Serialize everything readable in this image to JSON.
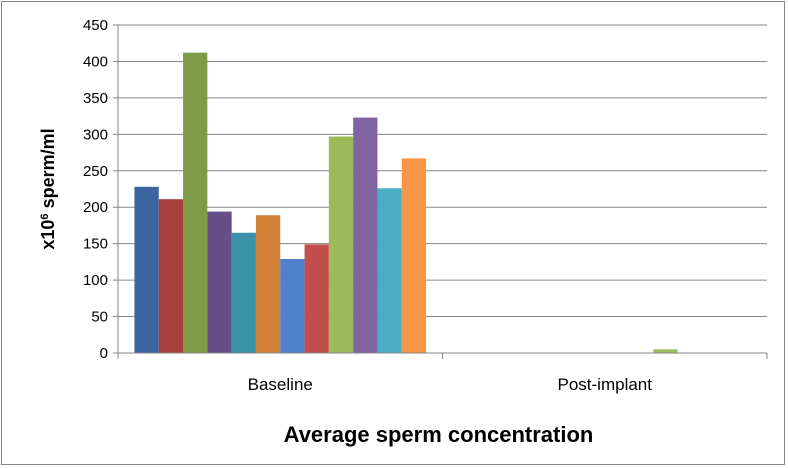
{
  "chart_data": {
    "type": "bar",
    "categories": [
      "Baseline",
      "Post-implant"
    ],
    "series": [
      {
        "values": [
          228,
          0
        ],
        "color": "#3B64A0"
      },
      {
        "values": [
          211,
          0
        ],
        "color": "#A83F3C"
      },
      {
        "values": [
          412,
          0
        ],
        "color": "#7E9B48"
      },
      {
        "values": [
          194,
          0
        ],
        "color": "#674E87"
      },
      {
        "values": [
          165,
          0
        ],
        "color": "#3A92A8"
      },
      {
        "values": [
          189,
          0
        ],
        "color": "#D07F36"
      },
      {
        "values": [
          129,
          0
        ],
        "color": "#4F82CA"
      },
      {
        "values": [
          149,
          0
        ],
        "color": "#C24F4D"
      },
      {
        "values": [
          297,
          5
        ],
        "color": "#9BBB59"
      },
      {
        "values": [
          323,
          0
        ],
        "color": "#8064A2"
      },
      {
        "values": [
          226,
          0
        ],
        "color": "#4BACC6"
      },
      {
        "values": [
          267,
          0
        ],
        "color": "#F79646"
      }
    ],
    "xlabel": "Average sperm concentration",
    "ylabel_prefix": "x10",
    "ylabel_superscript": "6",
    "ylabel_suffix": " sperm/ml",
    "ylim": [
      0,
      450
    ],
    "yticks": [
      0,
      50,
      100,
      150,
      200,
      250,
      300,
      350,
      400,
      450
    ],
    "grid": true,
    "legend": "none"
  }
}
